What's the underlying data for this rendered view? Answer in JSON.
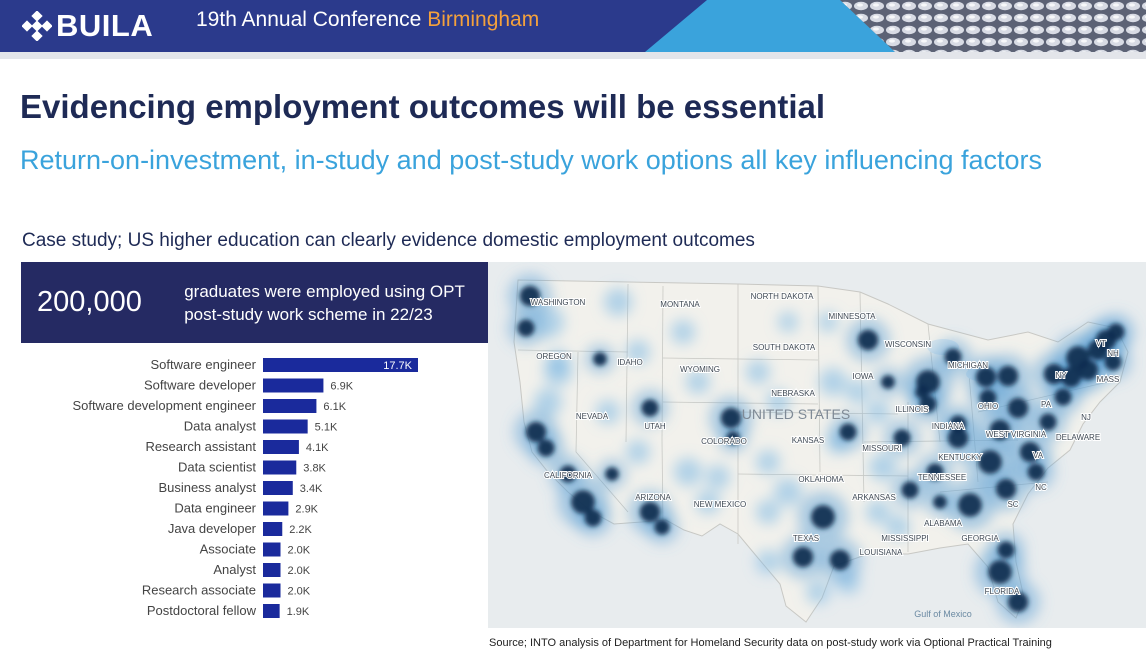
{
  "header": {
    "logo_text": "BUILA",
    "conference_title": "19th Annual Conference",
    "conference_city": "Birmingham"
  },
  "slide": {
    "title": "Evidencing employment outcomes will be essential",
    "subtitle": "Return-on-investment, in-study and post-study work options all key influencing factors",
    "case_study": "Case study; US higher education can clearly evidence domestic employment outcomes",
    "source": "Source; INTO analysis of Department for Homeland Security data on post-study work via Optional Practical Training"
  },
  "stat": {
    "number": "200,000",
    "text": "graduates were employed using OPT post-study work scheme in 22/23"
  },
  "colors": {
    "banner": "#2b3a8c",
    "accent_orange": "#f4a13c",
    "title_navy": "#1e2a55",
    "subtitle_blue": "#3aa3dc",
    "stat_box": "#252a63",
    "bar": "#1a2a9c"
  },
  "chart_data": {
    "type": "bar",
    "orientation": "horizontal",
    "categories": [
      "Software engineer",
      "Software developer",
      "Software development engineer",
      "Data analyst",
      "Research assistant",
      "Data scientist",
      "Business analyst",
      "Data engineer",
      "Java developer",
      "Associate",
      "Analyst",
      "Research associate",
      "Postdoctoral fellow"
    ],
    "values": [
      17.7,
      6.9,
      6.1,
      5.1,
      4.1,
      3.8,
      3.4,
      2.9,
      2.2,
      2.0,
      2.0,
      2.0,
      1.9
    ],
    "value_labels": [
      "17.7K",
      "6.9K",
      "6.1K",
      "5.1K",
      "4.1K",
      "3.8K",
      "3.4K",
      "2.9K",
      "2.2K",
      "2.0K",
      "2.0K",
      "2.0K",
      "1.9K"
    ],
    "unit": "K",
    "grid": false,
    "legend": "none"
  },
  "map": {
    "country_label": "UNITED STATES",
    "gulf_label": "Gulf of Mexico",
    "state_labels": [
      "WASHINGTON",
      "MONTANA",
      "NORTH DAKOTA",
      "MINNESOTA",
      "OREGON",
      "IDAHO",
      "SOUTH DAKOTA",
      "WISCONSIN",
      "MICHIGAN",
      "WYOMING",
      "IOWA",
      "NEBRASKA",
      "NEVADA",
      "UTAH",
      "ILLINOIS",
      "OHIO",
      "PA",
      "NY",
      "MASS",
      "VT",
      "NH",
      "COLORADO",
      "KANSAS",
      "MISSOURI",
      "INDIANA",
      "WEST VIRGINIA",
      "DELAWARE",
      "NJ",
      "KENTUCKY",
      "VA",
      "CALIFORNIA",
      "OKLAHOMA",
      "TENNESSEE",
      "NC",
      "ARIZONA",
      "NEW MEXICO",
      "ARKANSAS",
      "SC",
      "ALABAMA",
      "MISSISSIPPI",
      "GEORGIA",
      "TEXAS",
      "LOUISIANA",
      "FLORIDA"
    ]
  }
}
